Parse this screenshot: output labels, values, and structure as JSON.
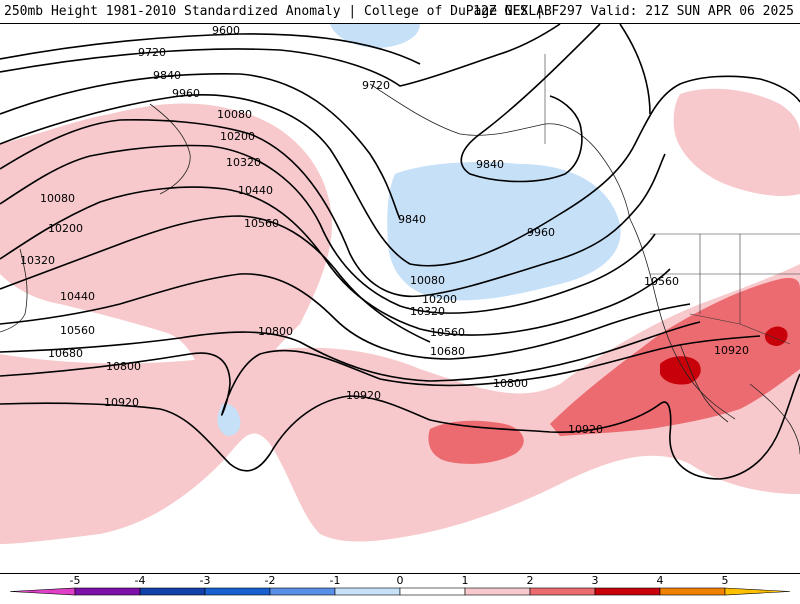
{
  "header": {
    "title_left": "250mb Height 1981-2010 Standardized Anomaly | College of DuPage NEXLAB",
    "title_right": "12Z GFS | F297 Valid: 21Z SUN APR 06 2025"
  },
  "colors": {
    "pos1": "#f7c9cc",
    "pos2": "#ec6b70",
    "pos3": "#c8000a",
    "neg1": "#c6e0f8",
    "contour": "#000000"
  },
  "contour_labels": [
    "9600",
    "9720",
    "9720",
    "9840",
    "9840",
    "9840",
    "9960",
    "9960",
    "10080",
    "10080",
    "10080",
    "10200",
    "10200",
    "10200",
    "10320",
    "10320",
    "10320",
    "10440",
    "10440",
    "10560",
    "10560",
    "10560",
    "10560",
    "10680",
    "10680",
    "10800",
    "10800",
    "10800",
    "10920",
    "10920",
    "10920",
    "10920"
  ],
  "legend": {
    "ticks": [
      "-5",
      "-4",
      "-3",
      "-2",
      "-1",
      "0",
      "1",
      "2",
      "3",
      "4",
      "5"
    ],
    "colors": [
      "#e040c8",
      "#7c10a8",
      "#1040a8",
      "#1860d0",
      "#5890e8",
      "#c6e0f8",
      "#ffffff",
      "#f7c9cc",
      "#ec6b70",
      "#c8000a",
      "#f08000",
      "#ffc000"
    ]
  }
}
